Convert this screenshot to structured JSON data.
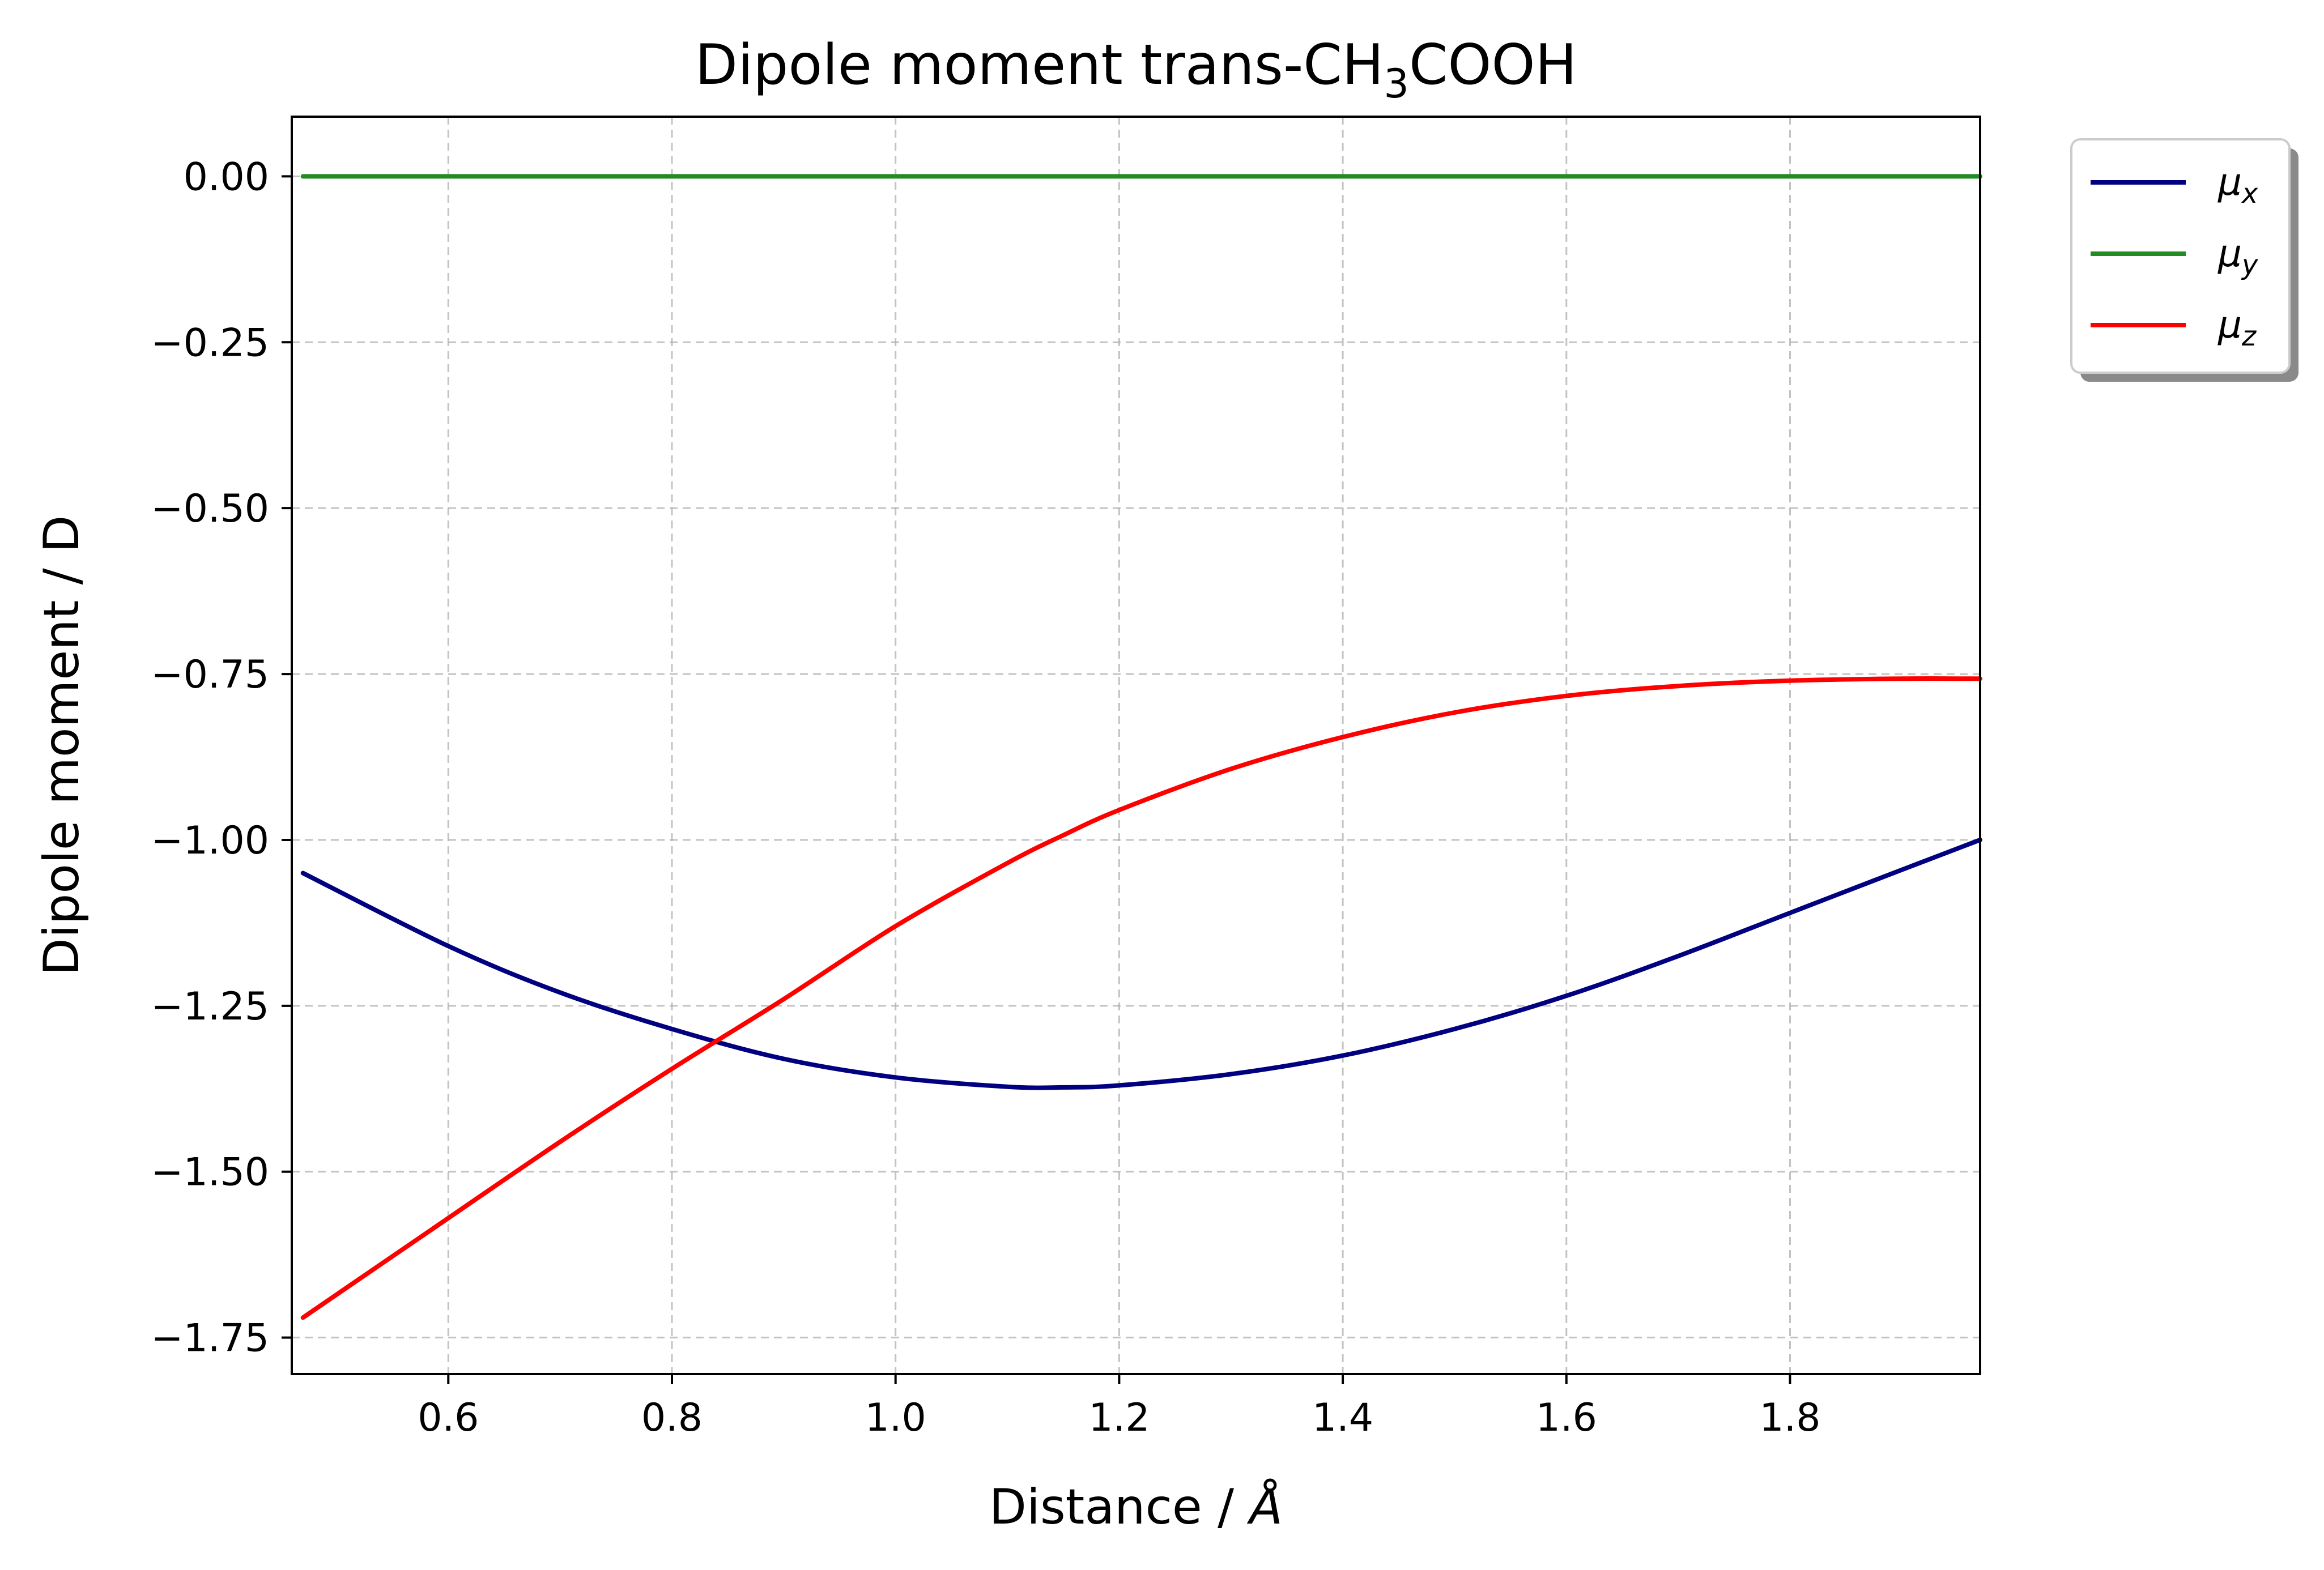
{
  "chart_data": {
    "type": "line",
    "title_main": "Dipole moment trans-CH",
    "title_sub": "3",
    "title_tail": "COOH",
    "xlabel": "Distance / ",
    "xlabel_unit": "Å",
    "ylabel": "Dipole moment  / D",
    "xlim": [
      0.46,
      1.97
    ],
    "ylim": [
      -1.805,
      0.09
    ],
    "x_ticks": [
      0.6,
      0.8,
      1.0,
      1.2,
      1.4,
      1.6,
      1.8
    ],
    "x_tick_labels": [
      "0.6",
      "0.8",
      "1.0",
      "1.2",
      "1.4",
      "1.6",
      "1.8"
    ],
    "y_ticks": [
      0.0,
      -0.25,
      -0.5,
      -0.75,
      -1.0,
      -1.25,
      -1.5,
      -1.75
    ],
    "y_tick_labels": [
      "0.00",
      "−0.25",
      "−0.50",
      "−0.75",
      "−1.00",
      "−1.25",
      "−1.50",
      "−1.75"
    ],
    "grid": true,
    "legend_position": "outside top-right",
    "x": [
      0.47,
      0.6,
      0.7,
      0.8,
      0.9,
      1.0,
      1.1,
      1.15,
      1.2,
      1.3,
      1.4,
      1.5,
      1.6,
      1.7,
      1.8,
      1.9,
      1.97
    ],
    "series": [
      {
        "name": "μ",
        "subscript": "x",
        "color": "#000080",
        "values": [
          -1.05,
          -1.16,
          -1.23,
          -1.285,
          -1.33,
          -1.358,
          -1.372,
          -1.373,
          -1.37,
          -1.353,
          -1.325,
          -1.285,
          -1.235,
          -1.175,
          -1.11,
          -1.045,
          -1.0
        ]
      },
      {
        "name": "μ",
        "subscript": "y",
        "color": "#228b22",
        "values": [
          0.0,
          0.0,
          0.0,
          0.0,
          0.0,
          0.0,
          0.0,
          0.0,
          0.0,
          0.0,
          0.0,
          0.0,
          0.0,
          0.0,
          0.0,
          0.0,
          0.0
        ]
      },
      {
        "name": "μ",
        "subscript": "z",
        "color": "#ff0000",
        "values": [
          -1.72,
          -1.57,
          -1.455,
          -1.345,
          -1.24,
          -1.13,
          -1.035,
          -0.993,
          -0.955,
          -0.893,
          -0.845,
          -0.808,
          -0.783,
          -0.768,
          -0.76,
          -0.757,
          -0.757
        ]
      }
    ]
  }
}
